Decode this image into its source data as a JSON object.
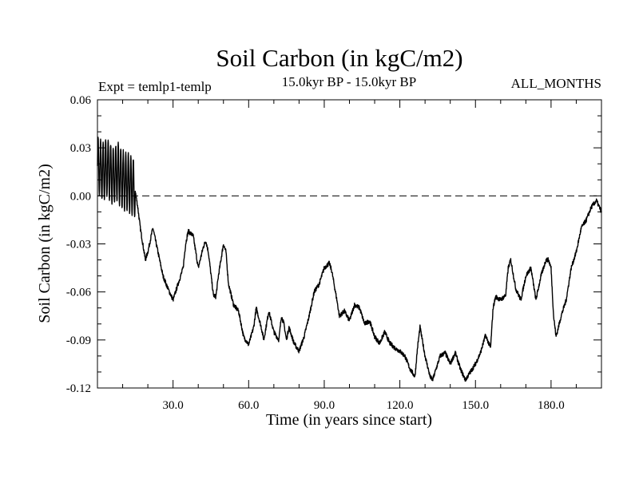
{
  "chart_data": {
    "type": "line",
    "title": "Soil Carbon (in kgC/m2)",
    "subtitle": "15.0kyr BP - 15.0kyr BP",
    "left_annotation": "Expt = temlp1-temlp",
    "right_annotation": "ALL_MONTHS",
    "xlabel": "Time (in years since start)",
    "ylabel": "Soil Carbon (in kgC/m2)",
    "xlim": [
      0,
      200
    ],
    "ylim": [
      -0.12,
      0.06
    ],
    "x_ticks": [
      30,
      60,
      90,
      120,
      150,
      180
    ],
    "x_tick_labels": [
      "30.0",
      "60.0",
      "90.0",
      "120.0",
      "150.0",
      "180.0"
    ],
    "y_ticks": [
      0.06,
      0.03,
      0.0,
      -0.03,
      -0.06,
      -0.09,
      -0.12
    ],
    "y_tick_labels": [
      "0.06",
      "0.03",
      "0.00",
      "-0.03",
      "-0.06",
      "-0.09",
      "-0.12"
    ],
    "reference_line_y": 0.0,
    "grid": false,
    "series": [
      {
        "name": "Soil Carbon",
        "oscillation_early": {
          "x_end": 15,
          "amplitude": 0.018,
          "cycles_per_year": 1
        },
        "x": [
          0,
          2,
          4,
          6,
          8,
          10,
          12,
          14,
          15,
          16,
          17,
          18,
          19,
          20,
          22,
          24,
          26,
          28,
          30,
          32,
          34,
          35,
          36,
          38,
          40,
          42,
          43,
          44,
          46,
          47,
          48,
          50,
          51,
          52,
          54,
          56,
          58,
          60,
          62,
          63,
          65,
          66,
          68,
          70,
          72,
          73,
          74,
          75,
          76,
          78,
          80,
          82,
          84,
          86,
          88,
          90,
          92,
          93,
          95,
          96,
          98,
          100,
          102,
          104,
          106,
          108,
          110,
          112,
          114,
          116,
          118,
          120,
          122,
          124,
          126,
          127,
          128,
          130,
          132,
          133,
          134,
          136,
          138,
          140,
          142,
          144,
          146,
          148,
          150,
          152,
          154,
          156,
          157,
          158,
          160,
          162,
          163,
          164,
          166,
          168,
          170,
          172,
          173,
          174,
          176,
          178,
          179,
          180,
          181,
          182,
          184,
          186,
          188,
          190,
          192,
          194,
          196,
          198,
          200
        ],
        "values": [
          0.02,
          0.015,
          0.018,
          0.012,
          0.015,
          0.01,
          0.008,
          0.006,
          0.003,
          -0.007,
          -0.02,
          -0.03,
          -0.04,
          -0.035,
          -0.02,
          -0.035,
          -0.05,
          -0.058,
          -0.065,
          -0.055,
          -0.045,
          -0.03,
          -0.022,
          -0.025,
          -0.045,
          -0.032,
          -0.028,
          -0.035,
          -0.062,
          -0.063,
          -0.05,
          -0.03,
          -0.035,
          -0.055,
          -0.068,
          -0.072,
          -0.088,
          -0.093,
          -0.082,
          -0.07,
          -0.082,
          -0.09,
          -0.072,
          -0.085,
          -0.09,
          -0.075,
          -0.08,
          -0.09,
          -0.082,
          -0.092,
          -0.097,
          -0.088,
          -0.075,
          -0.06,
          -0.055,
          -0.045,
          -0.042,
          -0.047,
          -0.065,
          -0.075,
          -0.072,
          -0.078,
          -0.068,
          -0.07,
          -0.08,
          -0.078,
          -0.088,
          -0.092,
          -0.085,
          -0.092,
          -0.095,
          -0.097,
          -0.1,
          -0.108,
          -0.113,
          -0.095,
          -0.082,
          -0.1,
          -0.113,
          -0.115,
          -0.11,
          -0.1,
          -0.098,
          -0.105,
          -0.098,
          -0.108,
          -0.115,
          -0.11,
          -0.105,
          -0.098,
          -0.087,
          -0.095,
          -0.07,
          -0.063,
          -0.065,
          -0.062,
          -0.045,
          -0.04,
          -0.058,
          -0.065,
          -0.05,
          -0.045,
          -0.055,
          -0.065,
          -0.05,
          -0.04,
          -0.04,
          -0.045,
          -0.075,
          -0.088,
          -0.075,
          -0.065,
          -0.045,
          -0.035,
          -0.02,
          -0.015,
          -0.007,
          -0.003,
          -0.01
        ]
      }
    ]
  }
}
